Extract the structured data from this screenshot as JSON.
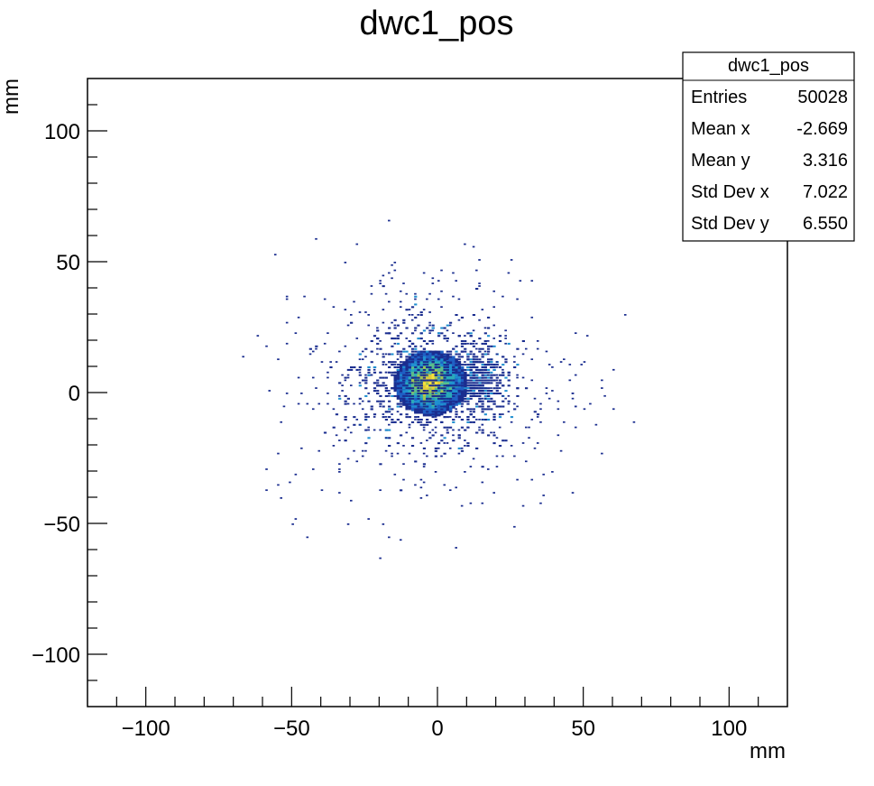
{
  "chart_data": {
    "type": "heatmap",
    "title": "dwc1_pos",
    "xlabel": "mm",
    "ylabel": "mm",
    "xlim": [
      -120,
      120
    ],
    "ylim": [
      -120,
      120
    ],
    "x_ticks": [
      -100,
      -50,
      0,
      50,
      100
    ],
    "y_ticks": [
      100,
      50,
      0,
      -50,
      -100
    ],
    "x_tick_labels": [
      "−100",
      "−50",
      "0",
      "50",
      "100"
    ],
    "y_tick_labels": [
      "100",
      "50",
      "0",
      "−50",
      "−100"
    ],
    "grid": false,
    "palette": [
      "#1a2d8f",
      "#1f5fc4",
      "#1f8fd0",
      "#2aaab8",
      "#5bbc8a",
      "#9ec455",
      "#e0c93a",
      "#f5e23a"
    ],
    "core": {
      "center": [
        -2.7,
        3.3
      ],
      "radius_x": 12,
      "radius_y": 12
    },
    "stats_box": {
      "title": "dwc1_pos",
      "rows": [
        {
          "label": "Entries",
          "value": "50028"
        },
        {
          "label": "Mean x",
          "value": "-2.669"
        },
        {
          "label": "Mean y",
          "value": "3.316"
        },
        {
          "label": "Std Dev x",
          "value": "7.022"
        },
        {
          "label": "Std Dev y",
          "value": "6.550"
        }
      ]
    }
  }
}
